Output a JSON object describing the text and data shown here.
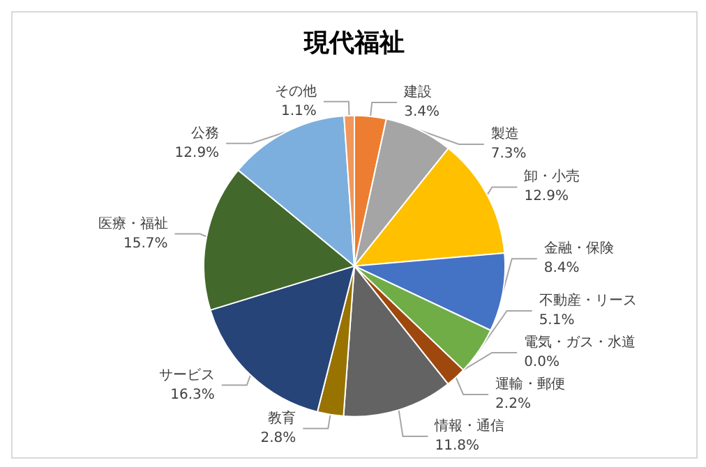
{
  "chart_data": {
    "type": "pie",
    "title": "現代福祉",
    "categories": [
      "建設",
      "製造",
      "卸・小売",
      "金融・保険",
      "不動産・リース",
      "電気・ガス・水道",
      "運輸・郵便",
      "情報・通信",
      "教育",
      "サービス",
      "医療・福祉",
      "公務",
      "その他"
    ],
    "values": [
      3.4,
      7.3,
      12.9,
      8.4,
      5.1,
      0.0,
      2.2,
      11.8,
      2.8,
      16.3,
      15.7,
      12.9,
      1.1
    ],
    "value_labels": [
      "3.4%",
      "7.3%",
      "12.9%",
      "8.4%",
      "5.1%",
      "0.0%",
      "2.2%",
      "11.8%",
      "2.8%",
      "16.3%",
      "15.7%",
      "12.9%",
      "1.1%"
    ],
    "colors": [
      "#ed7d31",
      "#a5a5a5",
      "#ffc000",
      "#4472c4",
      "#70ad47",
      "#255e91",
      "#9e480e",
      "#636363",
      "#997300",
      "#264478",
      "#43682b",
      "#7cafdd",
      "#f1975a"
    ],
    "legend": false
  }
}
